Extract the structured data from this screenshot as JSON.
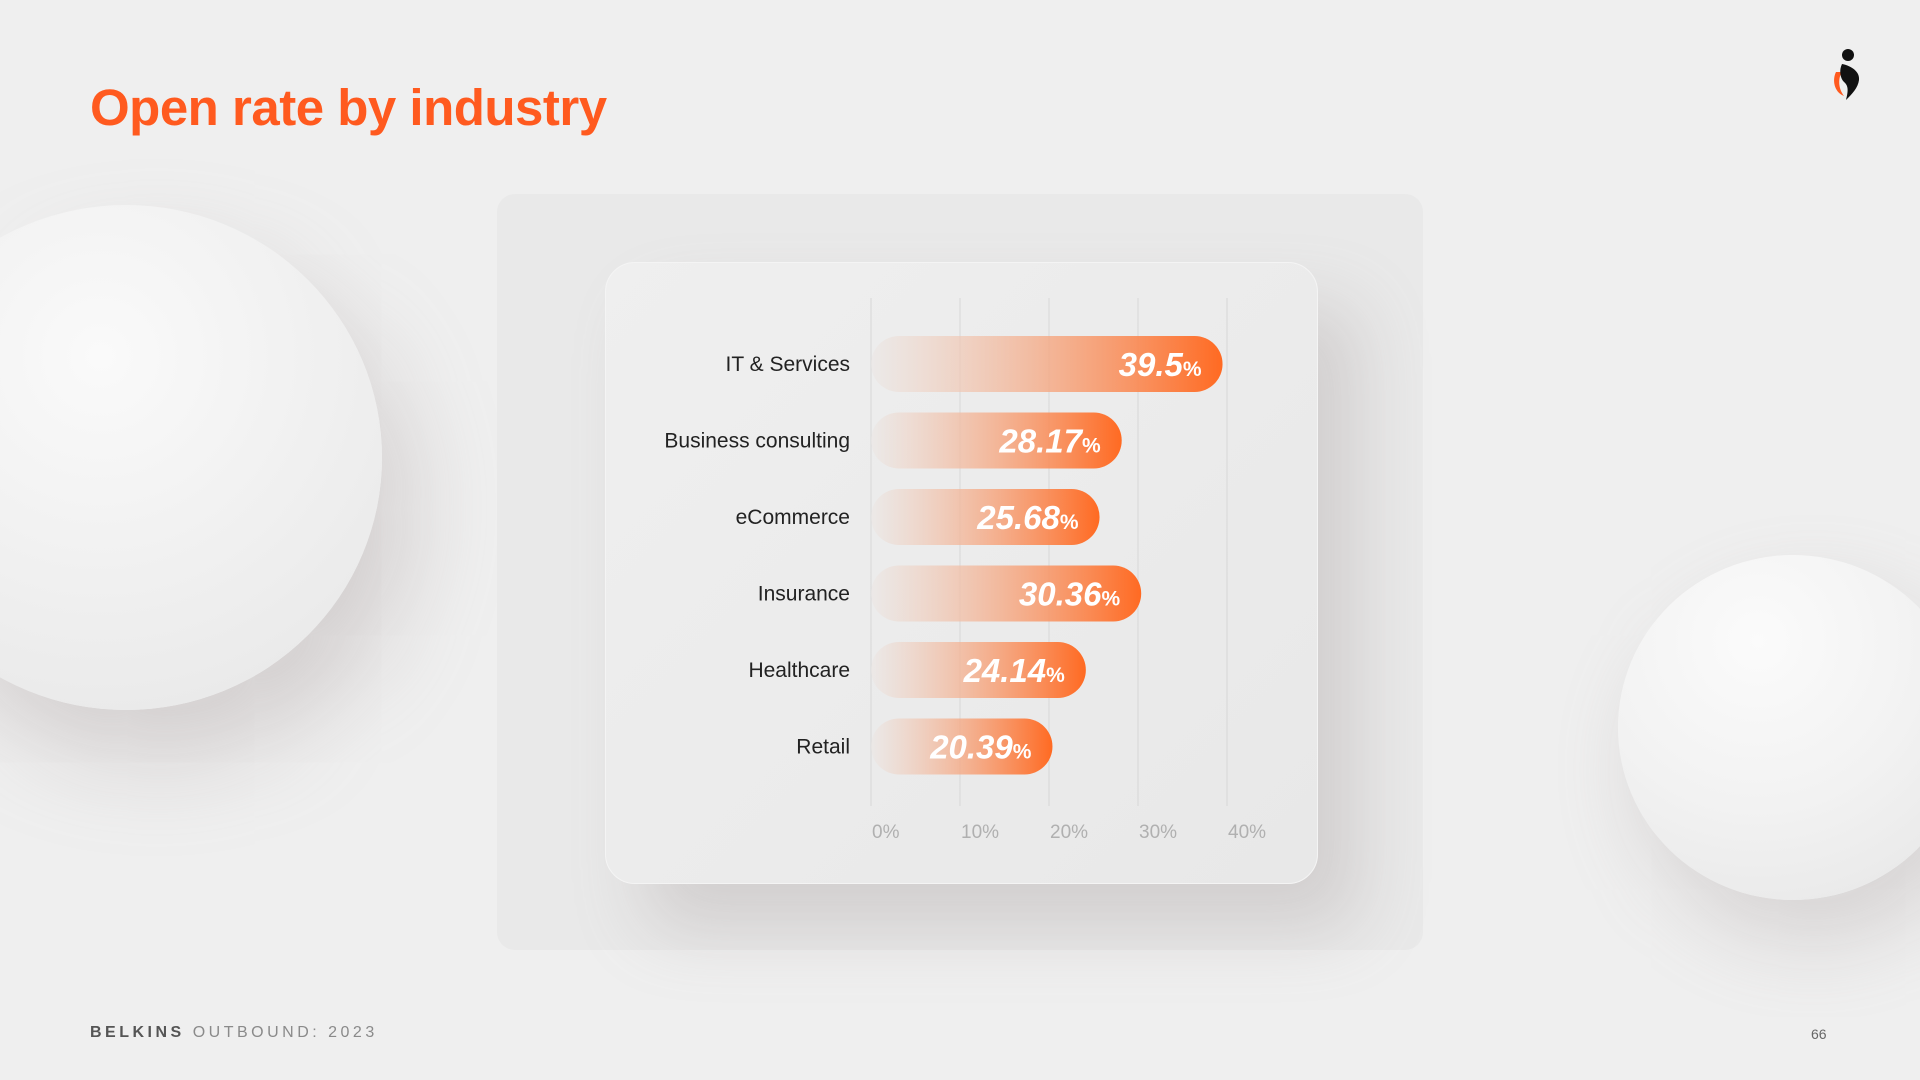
{
  "title": "Open rate by industry",
  "footer": {
    "brand": "BELKINS",
    "subtitle": "OUTBOUND: 2023",
    "page_number": "66"
  },
  "colors": {
    "accent": "#ff5a1f",
    "bar_start": "#ebe7e5",
    "bar_end": "#ff6a22"
  },
  "chart_data": {
    "type": "bar",
    "orientation": "horizontal",
    "title": "Open rate by industry",
    "xlabel": "",
    "ylabel": "",
    "xlim": [
      0,
      40
    ],
    "grid": true,
    "ticks": [
      "0%",
      "10%",
      "20%",
      "30%",
      "40%"
    ],
    "tick_values": [
      0,
      10,
      20,
      30,
      40
    ],
    "categories": [
      "IT & Services",
      "Business consulting",
      "eCommerce",
      "Insurance",
      "Healthcare",
      "Retail"
    ],
    "values": [
      39.5,
      28.17,
      25.68,
      30.36,
      24.14,
      20.39
    ],
    "value_labels": [
      "39.5",
      "28.17",
      "25.68",
      "30.36",
      "24.14",
      "20.39"
    ],
    "unit_suffix": "%"
  }
}
